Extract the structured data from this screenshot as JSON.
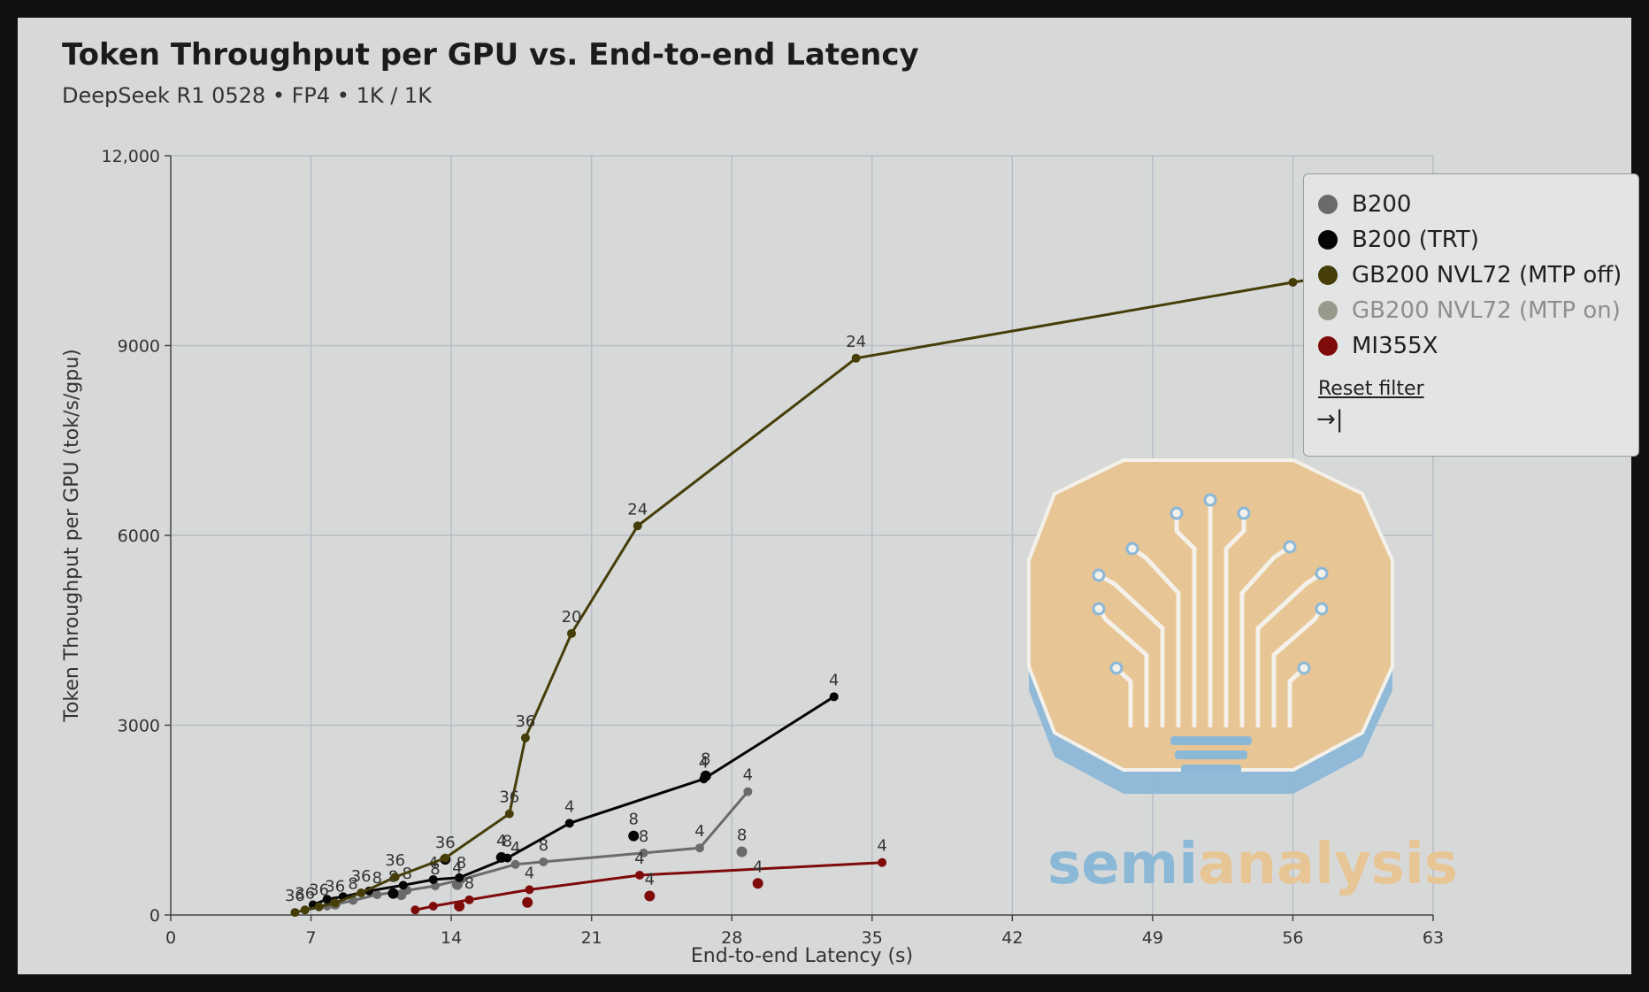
{
  "title": "Token Throughput per GPU vs. End-to-end Latency",
  "subtitle": "DeepSeek R1 0528 • FP4 • 1K / 1K",
  "legend": {
    "items": [
      {
        "label": "B200",
        "color": "#6b6b6b",
        "muted": false
      },
      {
        "label": "B200 (TRT)",
        "color": "#050505",
        "muted": false
      },
      {
        "label": "GB200 NVL72 (MTP off)",
        "color": "#463e09",
        "muted": false
      },
      {
        "label": "GB200 NVL72 (MTP on)",
        "color": "#9a9a8c",
        "muted": true
      },
      {
        "label": "MI355X",
        "color": "#7e0a0a",
        "muted": false
      }
    ],
    "reset_label": "Reset filter",
    "collapse_icon": "→|"
  },
  "watermark": {
    "left": "semi",
    "right": "analysis"
  },
  "chart_data": {
    "type": "scatter",
    "title": "Token Throughput per GPU vs. End-to-end Latency",
    "subtitle": "DeepSeek R1 0528 • FP4 • 1K / 1K",
    "xlabel": "End-to-end Latency (s)",
    "ylabel": "Token Throughput per GPU (tok/s/gpu)",
    "xlim": [
      0,
      63
    ],
    "ylim": [
      0,
      12000
    ],
    "xticks": [
      0,
      7,
      14,
      21,
      28,
      35,
      42,
      49,
      56,
      63
    ],
    "yticks": [
      0,
      3000,
      6000,
      9000,
      12000
    ],
    "ytick_labels": [
      "0",
      "3000",
      "6000",
      "9000",
      "12,000"
    ],
    "grid": true,
    "legend_position": "top-right",
    "series": [
      {
        "name": "B200",
        "color": "#6b6b6b",
        "lines": [
          {
            "points": [
              [
                6.7,
                80,
                ""
              ],
              [
                7.8,
                140,
                ""
              ],
              [
                9.1,
                230,
                "8"
              ],
              [
                10.3,
                320,
                "8"
              ],
              [
                11.8,
                390,
                "8"
              ],
              [
                13.2,
                460,
                "8"
              ],
              [
                14.5,
                560,
                "8"
              ],
              [
                17.2,
                800,
                "4"
              ],
              [
                18.6,
                840,
                "8"
              ],
              [
                23.6,
                980,
                "8"
              ],
              [
                26.4,
                1060,
                "4"
              ],
              [
                28.8,
                1950,
                "4"
              ]
            ]
          }
        ],
        "points": [
          [
            8.2,
            170,
            ""
          ],
          [
            11.5,
            320,
            ""
          ],
          [
            14.3,
            480,
            "4"
          ],
          [
            28.5,
            1000,
            "8"
          ]
        ]
      },
      {
        "name": "B200 (TRT)",
        "color": "#050505",
        "lines": [
          {
            "points": [
              [
                7.1,
                160,
                ""
              ],
              [
                7.8,
                250,
                ""
              ],
              [
                8.6,
                290,
                ""
              ],
              [
                9.9,
                380,
                ""
              ],
              [
                11.6,
                470,
                ""
              ],
              [
                13.1,
                560,
                "4"
              ],
              [
                14.4,
                590,
                ""
              ],
              [
                16.8,
                900,
                "8"
              ],
              [
                19.9,
                1450,
                "4"
              ],
              [
                26.6,
                2150,
                "4"
              ],
              [
                33.1,
                3450,
                "4"
              ]
            ]
          }
        ],
        "points": [
          [
            11.1,
            340,
            "8"
          ],
          [
            13.7,
            880,
            "36"
          ],
          [
            16.5,
            910,
            "4"
          ],
          [
            23.1,
            1250,
            "8"
          ],
          [
            26.7,
            2200,
            "8"
          ]
        ]
      },
      {
        "name": "GB200 NVL72 (MTP off)",
        "color": "#463e09",
        "lines": [
          {
            "points": [
              [
                6.2,
                40,
                "36"
              ],
              [
                6.7,
                80,
                "36"
              ],
              [
                7.4,
                130,
                "36"
              ],
              [
                8.2,
                190,
                "36"
              ],
              [
                9.5,
                350,
                "36"
              ],
              [
                11.2,
                600,
                "36"
              ],
              [
                13.7,
                900,
                ""
              ],
              [
                16.9,
                1600,
                "36"
              ],
              [
                17.7,
                2800,
                "36"
              ],
              [
                20.0,
                4450,
                "20"
              ],
              [
                23.3,
                6150,
                "24"
              ],
              [
                34.2,
                8800,
                "24"
              ],
              [
                56.0,
                10000,
                ""
              ],
              [
                58.0,
                10100,
                ""
              ]
            ]
          }
        ],
        "points": []
      },
      {
        "name": "GB200 NVL72 (MTP on)",
        "color": "#9a9a8c",
        "lines": [],
        "points": []
      },
      {
        "name": "MI355X",
        "color": "#7e0a0a",
        "lines": [
          {
            "points": [
              [
                12.2,
                80,
                ""
              ],
              [
                13.1,
                140,
                ""
              ],
              [
                14.9,
                240,
                "8"
              ],
              [
                17.9,
                400,
                "4"
              ],
              [
                23.4,
                630,
                "4"
              ],
              [
                35.5,
                830,
                "4"
              ]
            ]
          }
        ],
        "points": [
          [
            14.4,
            140,
            ""
          ],
          [
            17.8,
            200,
            ""
          ],
          [
            23.9,
            300,
            "4"
          ],
          [
            29.3,
            500,
            "4"
          ]
        ]
      }
    ]
  }
}
